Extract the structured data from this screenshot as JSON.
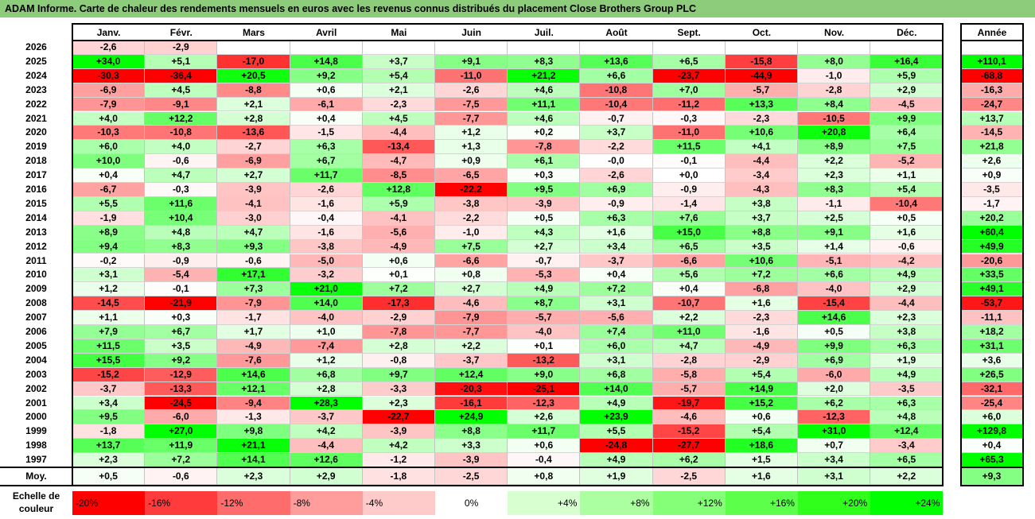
{
  "title": "ADAM Informe. Carte de chaleur des rendements mensuels en euros avec les revenus connus distribués du placement Close Brothers Group PLC",
  "chart_data": {
    "type": "heatmap",
    "columns": [
      "Janv.",
      "Févr.",
      "Mars",
      "Avril",
      "Mai",
      "Juin",
      "Juil.",
      "Août",
      "Sept.",
      "Oct.",
      "Nov.",
      "Déc."
    ],
    "annual_label": "Année",
    "rows": [
      {
        "year": "2026",
        "values": [
          "-2,6",
          "-2,9",
          null,
          null,
          null,
          null,
          null,
          null,
          null,
          null,
          null,
          null
        ],
        "annual": null
      },
      {
        "year": "2025",
        "values": [
          "+34,0",
          "+5,1",
          "-17,0",
          "+14,8",
          "+3,7",
          "+9,1",
          "+8,3",
          "+13,6",
          "+6,5",
          "-15,8",
          "+8,0",
          "+16,4"
        ],
        "annual": "+110,1"
      },
      {
        "year": "2024",
        "values": [
          "-30,3",
          "-36,4",
          "+20,5",
          "+9,2",
          "+5,4",
          "-11,0",
          "+21,2",
          "+6,6",
          "-23,7",
          "-44,9",
          "-1,0",
          "+5,9"
        ],
        "annual": "-68,8"
      },
      {
        "year": "2023",
        "values": [
          "-6,9",
          "+4,5",
          "-8,8",
          "+0,6",
          "+2,1",
          "-2,6",
          "+4,6",
          "-10,8",
          "+7,0",
          "-5,7",
          "-2,8",
          "+2,9"
        ],
        "annual": "-16,3"
      },
      {
        "year": "2022",
        "values": [
          "-7,9",
          "-9,1",
          "+2,1",
          "-6,1",
          "-2,3",
          "-7,5",
          "+11,1",
          "-10,4",
          "-11,2",
          "+13,3",
          "+8,4",
          "-4,5"
        ],
        "annual": "-24,7"
      },
      {
        "year": "2021",
        "values": [
          "+4,0",
          "+12,2",
          "+2,8",
          "+0,4",
          "+4,5",
          "-7,7",
          "+4,6",
          "-0,7",
          "-0,3",
          "-2,3",
          "-10,5",
          "+9,9"
        ],
        "annual": "+13,7"
      },
      {
        "year": "2020",
        "values": [
          "-10,3",
          "-10,8",
          "-13,6",
          "-1,5",
          "-4,4",
          "+1,2",
          "+0,2",
          "+3,7",
          "-11,0",
          "+10,6",
          "+20,8",
          "+6,4"
        ],
        "annual": "-14,5"
      },
      {
        "year": "2019",
        "values": [
          "+6,0",
          "+4,0",
          "-2,7",
          "+6,3",
          "-13,4",
          "+1,3",
          "-7,8",
          "-2,2",
          "+11,5",
          "+4,1",
          "+8,9",
          "+7,5"
        ],
        "annual": "+21,8"
      },
      {
        "year": "2018",
        "values": [
          "+10,0",
          "-0,6",
          "-6,9",
          "+6,7",
          "-4,7",
          "+0,9",
          "+6,1",
          "-0,0",
          "-0,1",
          "-4,4",
          "+2,2",
          "-5,2"
        ],
        "annual": "+2,6"
      },
      {
        "year": "2017",
        "values": [
          "+0,4",
          "+4,7",
          "+2,7",
          "+11,7",
          "-8,5",
          "-6,5",
          "+0,3",
          "-2,6",
          "+0,0",
          "-3,4",
          "+2,3",
          "+1,1"
        ],
        "annual": "+0,9"
      },
      {
        "year": "2016",
        "values": [
          "-6,7",
          "-0,3",
          "-3,9",
          "-2,6",
          "+12,8",
          "-22,2",
          "+9,5",
          "+6,9",
          "-0,9",
          "-4,3",
          "+8,3",
          "+5,4"
        ],
        "annual": "-3,5"
      },
      {
        "year": "2015",
        "values": [
          "+5,5",
          "+11,6",
          "-4,1",
          "-1,6",
          "+5,9",
          "-3,8",
          "-3,9",
          "-0,9",
          "-1,4",
          "+3,8",
          "-1,1",
          "-10,4"
        ],
        "annual": "-1,7"
      },
      {
        "year": "2014",
        "values": [
          "-1,9",
          "+10,4",
          "-3,0",
          "-0,4",
          "-4,1",
          "-2,2",
          "+0,5",
          "+6,3",
          "+7,6",
          "+3,7",
          "+2,5",
          "+0,5"
        ],
        "annual": "+20,2"
      },
      {
        "year": "2013",
        "values": [
          "+8,9",
          "+4,8",
          "+4,7",
          "-1,6",
          "-5,6",
          "-1,0",
          "+4,3",
          "+1,6",
          "+15,0",
          "+8,8",
          "+9,1",
          "+1,6"
        ],
        "annual": "+60,4"
      },
      {
        "year": "2012",
        "values": [
          "+9,4",
          "+8,3",
          "+9,3",
          "-3,8",
          "-4,9",
          "+7,5",
          "+2,7",
          "+3,4",
          "+6,5",
          "+3,5",
          "+1,4",
          "-0,6"
        ],
        "annual": "+49,9"
      },
      {
        "year": "2011",
        "values": [
          "-0,2",
          "-0,9",
          "-0,6",
          "-5,0",
          "+0,6",
          "-6,6",
          "-0,7",
          "-3,7",
          "-6,6",
          "+10,6",
          "-5,1",
          "-4,2"
        ],
        "annual": "-20,6"
      },
      {
        "year": "2010",
        "values": [
          "+3,1",
          "-5,4",
          "+17,1",
          "-3,2",
          "+0,1",
          "+0,8",
          "-5,3",
          "+0,4",
          "+5,6",
          "+7,2",
          "+6,6",
          "+4,9"
        ],
        "annual": "+33,5"
      },
      {
        "year": "2009",
        "values": [
          "+1,2",
          "-0,1",
          "+7,3",
          "+21,0",
          "+7,2",
          "+2,7",
          "+4,9",
          "+7,2",
          "+0,4",
          "-6,8",
          "-4,0",
          "+2,9"
        ],
        "annual": "+49,1"
      },
      {
        "year": "2008",
        "values": [
          "-14,5",
          "-21,9",
          "-7,9",
          "+14,0",
          "-17,3",
          "-4,6",
          "+8,7",
          "+3,1",
          "-10,7",
          "+1,6",
          "-15,4",
          "-4,4"
        ],
        "annual": "-53,7"
      },
      {
        "year": "2007",
        "values": [
          "+1,1",
          "+0,3",
          "-1,7",
          "-4,0",
          "-2,9",
          "-7,9",
          "-5,7",
          "-5,6",
          "+2,2",
          "-2,3",
          "+14,6",
          "+2,3"
        ],
        "annual": "-11,1"
      },
      {
        "year": "2006",
        "values": [
          "+7,9",
          "+6,7",
          "+1,7",
          "+1,0",
          "-7,8",
          "-7,7",
          "-4,0",
          "+7,4",
          "+11,0",
          "-1,6",
          "+0,5",
          "+3,8"
        ],
        "annual": "+18,2"
      },
      {
        "year": "2005",
        "values": [
          "+11,5",
          "+3,5",
          "-4,9",
          "-7,4",
          "+2,8",
          "+2,2",
          "+0,1",
          "+6,0",
          "+4,7",
          "-4,9",
          "+9,9",
          "+6,3"
        ],
        "annual": "+31,1"
      },
      {
        "year": "2004",
        "values": [
          "+15,5",
          "+9,2",
          "-7,6",
          "+1,2",
          "-0,8",
          "-3,7",
          "-13,2",
          "+3,1",
          "-2,8",
          "-2,9",
          "+6,9",
          "+1,9"
        ],
        "annual": "+3,6"
      },
      {
        "year": "2003",
        "values": [
          "-15,2",
          "-12,9",
          "+14,6",
          "+6,8",
          "+9,7",
          "+12,4",
          "+9,0",
          "+6,8",
          "-5,8",
          "+5,4",
          "-6,0",
          "+4,9"
        ],
        "annual": "+26,5"
      },
      {
        "year": "2002",
        "values": [
          "-3,7",
          "-13,3",
          "+12,1",
          "+2,8",
          "-3,3",
          "-20,3",
          "-25,1",
          "+14,0",
          "-5,7",
          "+14,9",
          "+2,0",
          "-3,5"
        ],
        "annual": "-32,1"
      },
      {
        "year": "2001",
        "values": [
          "+3,4",
          "-24,5",
          "-9,4",
          "+28,3",
          "+2,3",
          "-16,1",
          "-12,3",
          "+4,9",
          "-19,7",
          "+15,2",
          "+6,2",
          "+6,3"
        ],
        "annual": "-25,4"
      },
      {
        "year": "2000",
        "values": [
          "+9,5",
          "-6,0",
          "-1,3",
          "-3,7",
          "-22,7",
          "+24,9",
          "+2,6",
          "+23,9",
          "-4,6",
          "+0,6",
          "-12,3",
          "+4,8"
        ],
        "annual": "+6,0"
      },
      {
        "year": "1999",
        "values": [
          "-1,8",
          "+27,0",
          "+9,8",
          "+4,2",
          "-3,9",
          "+8,8",
          "+11,7",
          "+5,5",
          "-15,2",
          "+5,4",
          "+31,0",
          "+12,4"
        ],
        "annual": "+129,8"
      },
      {
        "year": "1998",
        "values": [
          "+13,7",
          "+11,9",
          "+21,1",
          "-4,4",
          "+4,2",
          "+3,3",
          "+0,6",
          "-24,8",
          "-27,7",
          "+18,6",
          "+0,7",
          "-3,4"
        ],
        "annual": "+0,4"
      },
      {
        "year": "1997",
        "values": [
          "+2,3",
          "+7,2",
          "+14,1",
          "+12,6",
          "-1,2",
          "-3,9",
          "-0,4",
          "+4,9",
          "+6,2",
          "+1,5",
          "+3,4",
          "+6,5"
        ],
        "annual": "+65,3"
      }
    ],
    "average": {
      "label": "Moy.",
      "values": [
        "+0,5",
        "-0,6",
        "+2,3",
        "+2,9",
        "-1,8",
        "-2,5",
        "+0,8",
        "+1,9",
        "-2,5",
        "+1,6",
        "+3,1",
        "+2,2"
      ],
      "annual": "+9,3"
    },
    "scale": {
      "label": "Echelle de couleur",
      "entries": [
        {
          "text": "-20%",
          "color": "#ff0000"
        },
        {
          "text": "-16%",
          "color": "#ff3b3b"
        },
        {
          "text": "-12%",
          "color": "#ff6c6c"
        },
        {
          "text": "-8%",
          "color": "#ff9c9c"
        },
        {
          "text": "-4%",
          "color": "#ffcaca"
        },
        {
          "text": "0%",
          "color": "#ffffff"
        },
        {
          "text": "+4%",
          "color": "#d8ffd0"
        },
        {
          "text": "+8%",
          "color": "#acffa0"
        },
        {
          "text": "+12%",
          "color": "#86ff78"
        },
        {
          "text": "+16%",
          "color": "#5cff4a"
        },
        {
          "text": "+20%",
          "color": "#30ff1c"
        },
        {
          "text": "+24%",
          "color": "#00ff00"
        }
      ]
    }
  }
}
